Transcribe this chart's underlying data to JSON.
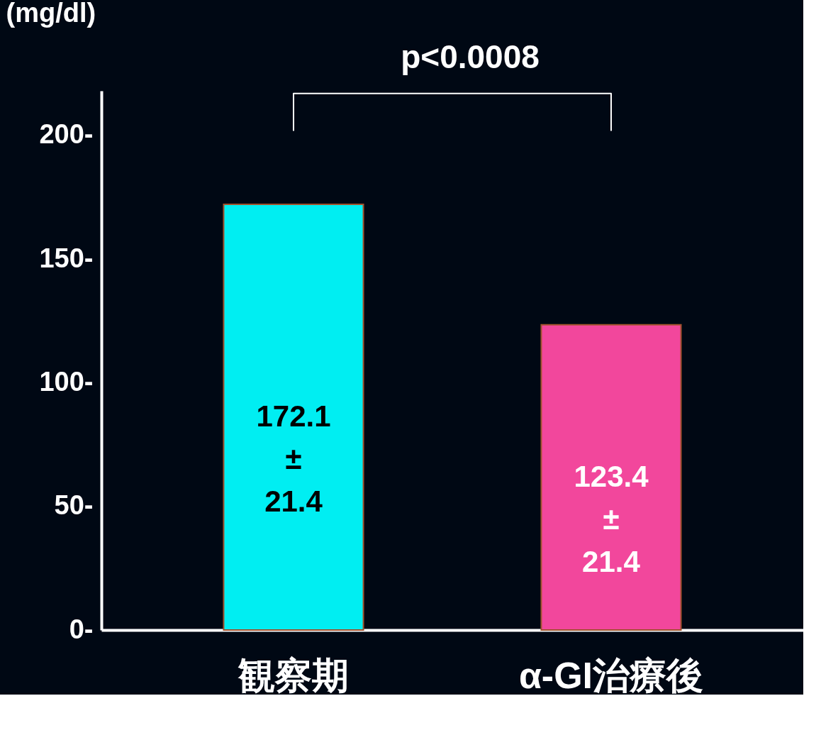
{
  "chart_data": {
    "type": "bar",
    "ylabel": "(mg/dl)",
    "categories": [
      "観察期",
      "α-GI治療後"
    ],
    "values": [
      172.1,
      123.4
    ],
    "colors": [
      "#00eef2",
      "#f2479c"
    ],
    "value_labels": [
      "172.1\n±\n21.4",
      "123.4\n±\n21.4"
    ],
    "ylim": [
      0,
      218
    ],
    "yticks": [
      {
        "value": 0,
        "label": "0-"
      },
      {
        "value": 50,
        "label": "50-"
      },
      {
        "value": 100,
        "label": "100-"
      },
      {
        "value": 150,
        "label": "150-"
      },
      {
        "value": 200,
        "label": "200-"
      }
    ],
    "annotations": [
      "p<0.0008"
    ],
    "grid": false,
    "legend": false
  }
}
